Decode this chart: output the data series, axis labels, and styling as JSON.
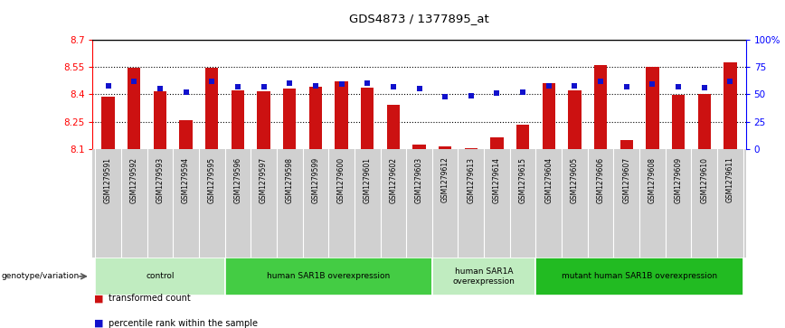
{
  "title": "GDS4873 / 1377895_at",
  "samples": [
    "GSM1279591",
    "GSM1279592",
    "GSM1279593",
    "GSM1279594",
    "GSM1279595",
    "GSM1279596",
    "GSM1279597",
    "GSM1279598",
    "GSM1279599",
    "GSM1279600",
    "GSM1279601",
    "GSM1279602",
    "GSM1279603",
    "GSM1279612",
    "GSM1279613",
    "GSM1279614",
    "GSM1279615",
    "GSM1279604",
    "GSM1279605",
    "GSM1279606",
    "GSM1279607",
    "GSM1279608",
    "GSM1279609",
    "GSM1279610",
    "GSM1279611"
  ],
  "red_values": [
    8.385,
    8.545,
    8.415,
    8.26,
    8.545,
    8.42,
    8.415,
    8.43,
    8.44,
    8.47,
    8.435,
    8.345,
    8.125,
    8.115,
    8.105,
    8.165,
    8.235,
    8.46,
    8.42,
    8.56,
    8.15,
    8.55,
    8.395,
    8.4,
    8.575
  ],
  "blue_percentiles": [
    58,
    62,
    55,
    52,
    62,
    57,
    57,
    60,
    58,
    59,
    60,
    57,
    55,
    48,
    49,
    51,
    52,
    58,
    58,
    62,
    57,
    59,
    57,
    56,
    62
  ],
  "groups": [
    {
      "label": "control",
      "start": 0,
      "end": 5,
      "color": "#c0ecc0"
    },
    {
      "label": "human SAR1B overexpression",
      "start": 5,
      "end": 13,
      "color": "#44cc44"
    },
    {
      "label": "human SAR1A\noverexpression",
      "start": 13,
      "end": 17,
      "color": "#c0ecc0"
    },
    {
      "label": "mutant human SAR1B overexpression",
      "start": 17,
      "end": 25,
      "color": "#22bb22"
    }
  ],
  "ymin": 8.1,
  "ymax": 8.7,
  "yticks_left": [
    8.1,
    8.25,
    8.4,
    8.55,
    8.7
  ],
  "ytick_labels_right": [
    "0",
    "25",
    "50",
    "75",
    "100%"
  ],
  "hlines": [
    8.25,
    8.4,
    8.55
  ],
  "bar_color": "#cc1111",
  "dot_color": "#1111cc",
  "bar_width": 0.5,
  "genotype_label": "genotype/variation",
  "legend_red": "transformed count",
  "legend_blue": "percentile rank within the sample"
}
